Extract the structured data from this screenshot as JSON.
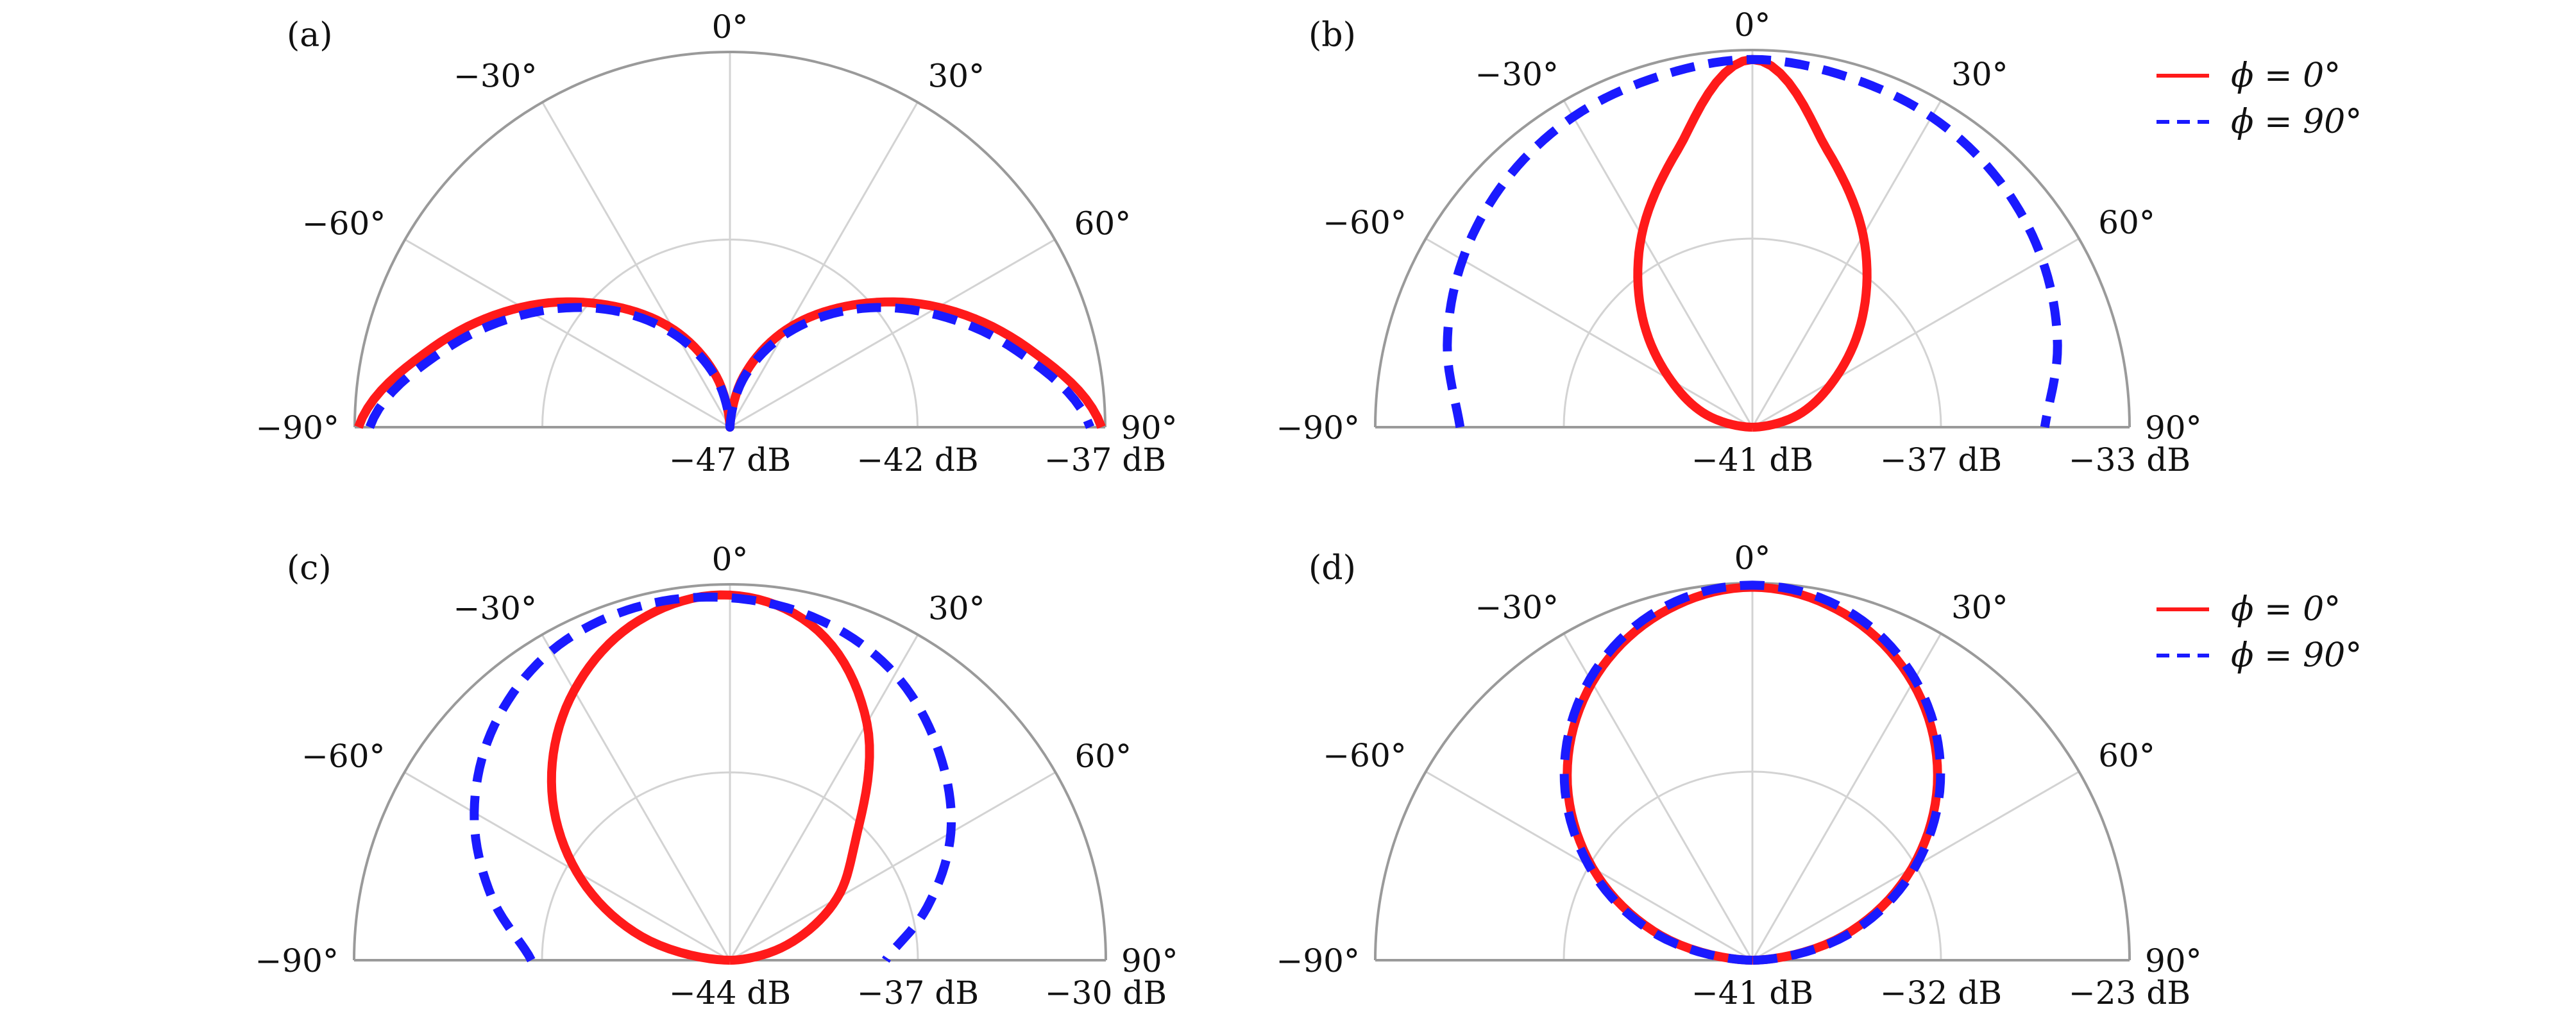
{
  "colors": {
    "phi_0": "#ff1a1a",
    "phi_90": "#1a1aff",
    "frame": "#9a9a9a",
    "grid": "#d3d3d3"
  },
  "legend": {
    "entries": [
      "ϕ = 0°",
      "ϕ = 90°"
    ],
    "placement": "right of panels (b) and (d)"
  },
  "chart_data": [
    {
      "panel": "(a)",
      "type": "line",
      "coordinate_system": "polar half-plane",
      "theta_ticks": [
        "−90°",
        "−60°",
        "−30°",
        "0°",
        "30°",
        "60°",
        "90°"
      ],
      "r_ticks": [
        "−47 dB",
        "−42 dB",
        "−37 dB"
      ],
      "rlim": [
        -47,
        -37
      ],
      "grid": true,
      "series": [
        {
          "name": "ϕ = 0°",
          "style": "solid",
          "theta_deg": [
            -90,
            -75,
            -60,
            -45,
            -30,
            -15,
            0,
            15,
            30,
            45,
            60,
            75,
            90
          ],
          "r_db": [
            -37.1,
            -38.8,
            -40.6,
            -42.4,
            -44.0,
            -45.6,
            -47.0,
            -45.6,
            -44.0,
            -42.4,
            -40.6,
            -38.8,
            -37.1
          ]
        },
        {
          "name": "ϕ = 90°",
          "style": "dashed",
          "theta_deg": [
            -90,
            -75,
            -60,
            -45,
            -30,
            -15,
            0,
            15,
            30,
            45,
            60,
            75,
            90
          ],
          "r_db": [
            -37.4,
            -39.1,
            -40.9,
            -42.6,
            -44.2,
            -45.7,
            -47.0,
            -45.7,
            -44.2,
            -42.6,
            -40.9,
            -39.1,
            -37.4
          ]
        }
      ]
    },
    {
      "panel": "(b)",
      "type": "line",
      "coordinate_system": "polar half-plane",
      "theta_ticks": [
        "−90°",
        "−60°",
        "−30°",
        "0°",
        "30°",
        "60°",
        "90°"
      ],
      "r_ticks": [
        "−41 dB",
        "−37 dB",
        "−33 dB"
      ],
      "rlim": [
        -41,
        -33
      ],
      "grid": true,
      "series": [
        {
          "name": "ϕ = 0°",
          "style": "solid",
          "theta_deg": [
            -90,
            -75,
            -60,
            -45,
            -30,
            -15,
            0,
            15,
            30,
            45,
            60,
            75,
            90
          ],
          "r_db": [
            -41.0,
            -40.0,
            -39.0,
            -37.7,
            -36.3,
            -34.9,
            -33.2,
            -34.9,
            -36.3,
            -37.7,
            -39.0,
            -40.0,
            -41.0
          ]
        },
        {
          "name": "ϕ = 90°",
          "style": "dashed",
          "theta_deg": [
            -90,
            -75,
            -60,
            -45,
            -30,
            -15,
            0,
            15,
            30,
            45,
            60,
            75,
            90
          ],
          "r_db": [
            -34.8,
            -34.3,
            -33.9,
            -33.6,
            -33.4,
            -33.3,
            -33.2,
            -33.3,
            -33.4,
            -33.6,
            -33.9,
            -34.3,
            -34.8
          ]
        }
      ]
    },
    {
      "panel": "(c)",
      "type": "line",
      "coordinate_system": "polar half-plane",
      "theta_ticks": [
        "−90°",
        "−60°",
        "−30°",
        "0°",
        "30°",
        "60°",
        "90°"
      ],
      "r_ticks": [
        "−44 dB",
        "−37 dB",
        "−30 dB"
      ],
      "rlim": [
        -44,
        -30
      ],
      "grid": true,
      "series": [
        {
          "name": "ϕ = 0°",
          "style": "solid",
          "theta_deg": [
            -90,
            -75,
            -60,
            -45,
            -30,
            -15,
            0,
            15,
            30,
            45,
            60,
            75,
            90
          ],
          "r_db": [
            -44.0,
            -40.6,
            -37.4,
            -34.6,
            -32.4,
            -30.9,
            -30.4,
            -31.3,
            -33.8,
            -37.3,
            -39.4,
            -41.8,
            -44.0
          ]
        },
        {
          "name": "ϕ = 90°",
          "style": "dashed",
          "theta_deg": [
            -90,
            -75,
            -60,
            -45,
            -30,
            -15,
            0,
            15,
            30,
            45,
            60,
            75,
            90
          ],
          "r_db": [
            -36.6,
            -34.8,
            -33.0,
            -31.6,
            -30.7,
            -30.4,
            -30.5,
            -30.9,
            -31.7,
            -33.0,
            -34.5,
            -36.4,
            -38.2
          ]
        }
      ]
    },
    {
      "panel": "(d)",
      "type": "line",
      "coordinate_system": "polar half-plane",
      "theta_ticks": [
        "−90°",
        "−60°",
        "−30°",
        "0°",
        "30°",
        "60°",
        "90°"
      ],
      "r_ticks": [
        "−41 dB",
        "−32 dB",
        "−23 dB"
      ],
      "rlim": [
        -41,
        -23
      ],
      "grid": true,
      "series": [
        {
          "name": "ϕ = 0°",
          "style": "solid",
          "theta_deg": [
            -90,
            -75,
            -60,
            -45,
            -30,
            -15,
            0,
            15,
            30,
            45,
            60,
            75,
            90
          ],
          "r_db": [
            -41.0,
            -36.5,
            -32.2,
            -28.5,
            -25.7,
            -23.9,
            -23.2,
            -23.9,
            -25.7,
            -28.5,
            -32.2,
            -36.5,
            -41.0
          ]
        },
        {
          "name": "ϕ = 90°",
          "style": "dashed",
          "theta_deg": [
            -90,
            -75,
            -60,
            -45,
            -30,
            -15,
            0,
            15,
            30,
            45,
            60,
            75,
            90
          ],
          "r_db": [
            -41.0,
            -36.3,
            -32.0,
            -28.3,
            -25.5,
            -23.7,
            -23.1,
            -23.7,
            -25.5,
            -28.3,
            -32.0,
            -36.3,
            -41.0
          ]
        }
      ]
    }
  ]
}
